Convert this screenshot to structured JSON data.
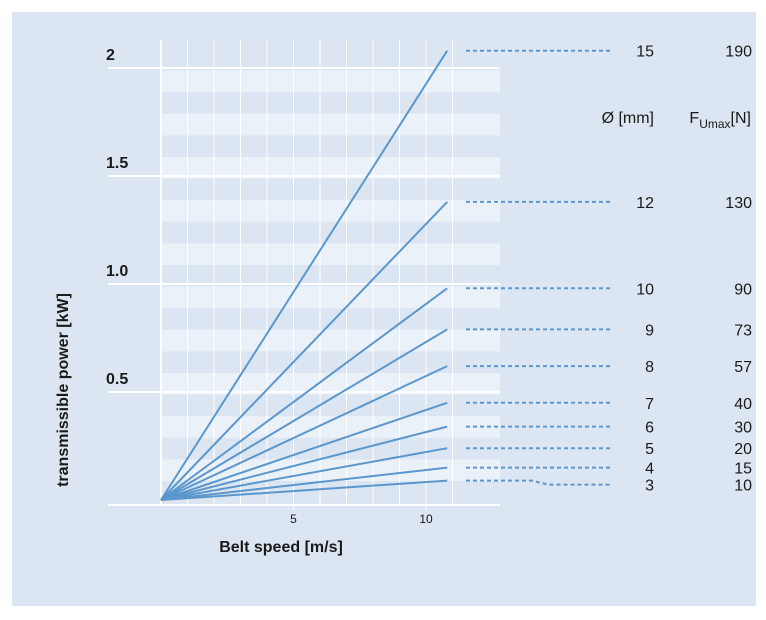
{
  "chart_data": {
    "type": "line",
    "xlabel": "Belt speed [m/s]",
    "ylabel": "transmissible power [kW]",
    "x_ticks": [
      5,
      10
    ],
    "y_ticks": [
      {
        "value": 0.5,
        "label": "0.5"
      },
      {
        "value": 1.0,
        "label": "1.0"
      },
      {
        "value": 1.5,
        "label": "1.5"
      },
      {
        "value": 2.0,
        "label": "2"
      }
    ],
    "xlim": [
      0,
      11
    ],
    "ylim": [
      0,
      2.1
    ],
    "grid": true,
    "header_diameter": "Ø [mm]",
    "header_force": {
      "main": "F",
      "sub": "Umax",
      "unit": "[N]"
    },
    "series": [
      {
        "diameter": "15",
        "force": "190",
        "x": [
          0,
          10.8
        ],
        "y": [
          0,
          2.08
        ]
      },
      {
        "diameter": "12",
        "force": "130",
        "x": [
          0,
          10.8
        ],
        "y": [
          0,
          1.38
        ]
      },
      {
        "diameter": "10",
        "force": "90",
        "x": [
          0,
          10.8
        ],
        "y": [
          0,
          0.98
        ]
      },
      {
        "diameter": "9",
        "force": "73",
        "x": [
          0,
          10.8
        ],
        "y": [
          0,
          0.79
        ]
      },
      {
        "diameter": "8",
        "force": "57",
        "x": [
          0,
          10.8
        ],
        "y": [
          0,
          0.62
        ]
      },
      {
        "diameter": "7",
        "force": "40",
        "x": [
          0,
          10.8
        ],
        "y": [
          0,
          0.45
        ]
      },
      {
        "diameter": "6",
        "force": "30",
        "x": [
          0,
          10.8
        ],
        "y": [
          0,
          0.34
        ]
      },
      {
        "diameter": "5",
        "force": "20",
        "x": [
          0,
          10.8
        ],
        "y": [
          0,
          0.24
        ]
      },
      {
        "diameter": "4",
        "force": "15",
        "x": [
          0,
          10.8
        ],
        "y": [
          0,
          0.15
        ]
      },
      {
        "diameter": "3",
        "force": "10",
        "x": [
          0,
          10.8
        ],
        "y": [
          0,
          0.09
        ]
      }
    ]
  },
  "colors": {
    "background": "#dce6f2",
    "plot_band": "#ebf1f9",
    "line": "#5b97cc",
    "grid": "#ffffff",
    "text": "#1a1a1a"
  }
}
